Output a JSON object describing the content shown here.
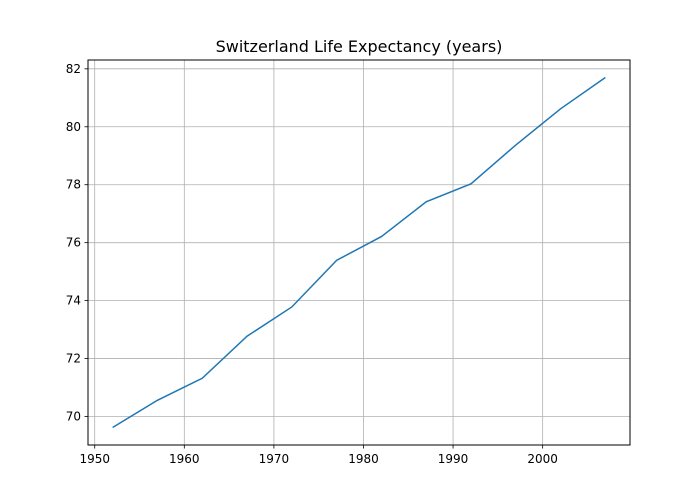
{
  "chart_data": {
    "type": "line",
    "title": "Switzerland Life Expectancy (years)",
    "xlabel": "",
    "ylabel": "",
    "x": [
      1952,
      1957,
      1962,
      1967,
      1972,
      1977,
      1982,
      1987,
      1992,
      1997,
      2002,
      2007
    ],
    "series": [
      {
        "values": [
          69.62,
          70.56,
          71.32,
          72.77,
          73.78,
          75.39,
          76.21,
          77.41,
          78.03,
          79.37,
          80.62,
          81.701
        ],
        "color": "#1f77b4"
      }
    ],
    "xlim": [
      1949.25,
      2009.75
    ],
    "ylim": [
      69.016,
      82.305
    ],
    "xticks": [
      "1950",
      "1960",
      "1970",
      "1980",
      "1990",
      "2000"
    ],
    "yticks": [
      "70",
      "72",
      "74",
      "76",
      "78",
      "80",
      "82"
    ],
    "grid": true
  }
}
